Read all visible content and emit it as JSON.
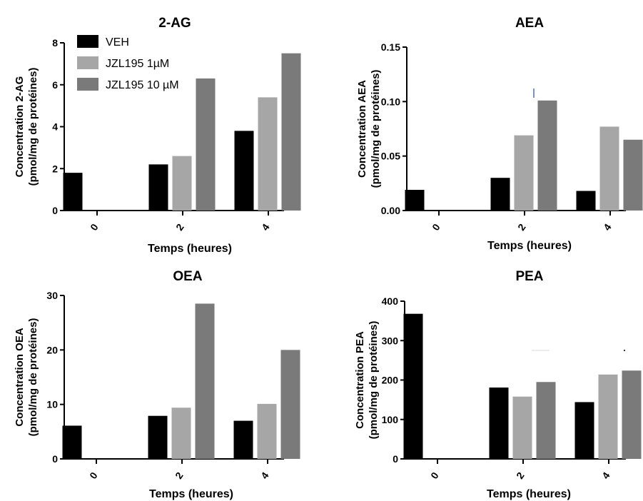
{
  "chart_data": [
    {
      "type": "bar",
      "title": "2-AG",
      "ylabel": "Concentration 2-AG",
      "ylabel_sub": "(pmol/mg de protéines)",
      "xlabel": "Temps (heures)",
      "categories": [
        "0",
        "2",
        "4"
      ],
      "ylim": [
        0,
        8
      ],
      "yticks": [
        "0",
        "2",
        "4",
        "6",
        "8"
      ],
      "series": [
        {
          "name": "VEH",
          "color": "#000000",
          "values": [
            1.8,
            2.2,
            3.8
          ]
        },
        {
          "name": "JZL195 1µM",
          "color": "#a6a6a6",
          "values": [
            null,
            2.6,
            5.4
          ]
        },
        {
          "name": "JZL195 10 µM",
          "color": "#7a7a7a",
          "values": [
            null,
            6.3,
            7.5
          ]
        }
      ],
      "legend": "top-left"
    },
    {
      "type": "bar",
      "title": "AEA",
      "ylabel": "Concentration AEA",
      "ylabel_sub": "(pmol/mg de protéines)",
      "xlabel": "Temps (heures)",
      "categories": [
        "0",
        "2",
        "4"
      ],
      "ylim": [
        0,
        0.15
      ],
      "yticks": [
        "0.00",
        "0.05",
        "0.10",
        "0.15"
      ],
      "series": [
        {
          "color": "#000000",
          "values": [
            0.019,
            0.03,
            0.018
          ]
        },
        {
          "color": "#a6a6a6",
          "values": [
            null,
            0.069,
            0.077
          ]
        },
        {
          "color": "#7a7a7a",
          "values": [
            null,
            0.101,
            0.065
          ]
        }
      ]
    },
    {
      "type": "bar",
      "title": "OEA",
      "ylabel": "Concentration OEA",
      "ylabel_sub": "(pmol/mg de protéines)",
      "xlabel": "Temps (heures)",
      "categories": [
        "0",
        "2",
        "4"
      ],
      "ylim": [
        0,
        30
      ],
      "yticks": [
        "0",
        "10",
        "20",
        "30"
      ],
      "series": [
        {
          "color": "#000000",
          "values": [
            6.1,
            7.9,
            7.0
          ]
        },
        {
          "color": "#a6a6a6",
          "values": [
            null,
            9.4,
            10.1
          ]
        },
        {
          "color": "#7a7a7a",
          "values": [
            null,
            28.5,
            20.0
          ]
        }
      ]
    },
    {
      "type": "bar",
      "title": "PEA",
      "ylabel": "Concentration PEA",
      "ylabel_sub": "(pmol/mg de protéines)",
      "xlabel": "Temps (heures)",
      "categories": [
        "0",
        "2",
        "4"
      ],
      "ylim": [
        0,
        400
      ],
      "yticks": [
        "0",
        "100",
        "200",
        "300",
        "400"
      ],
      "series": [
        {
          "color": "#000000",
          "values": [
            368,
            181,
            144
          ]
        },
        {
          "color": "#a6a6a6",
          "values": [
            null,
            158,
            214
          ]
        },
        {
          "color": "#7a7a7a",
          "values": [
            null,
            195,
            224
          ]
        }
      ]
    }
  ]
}
